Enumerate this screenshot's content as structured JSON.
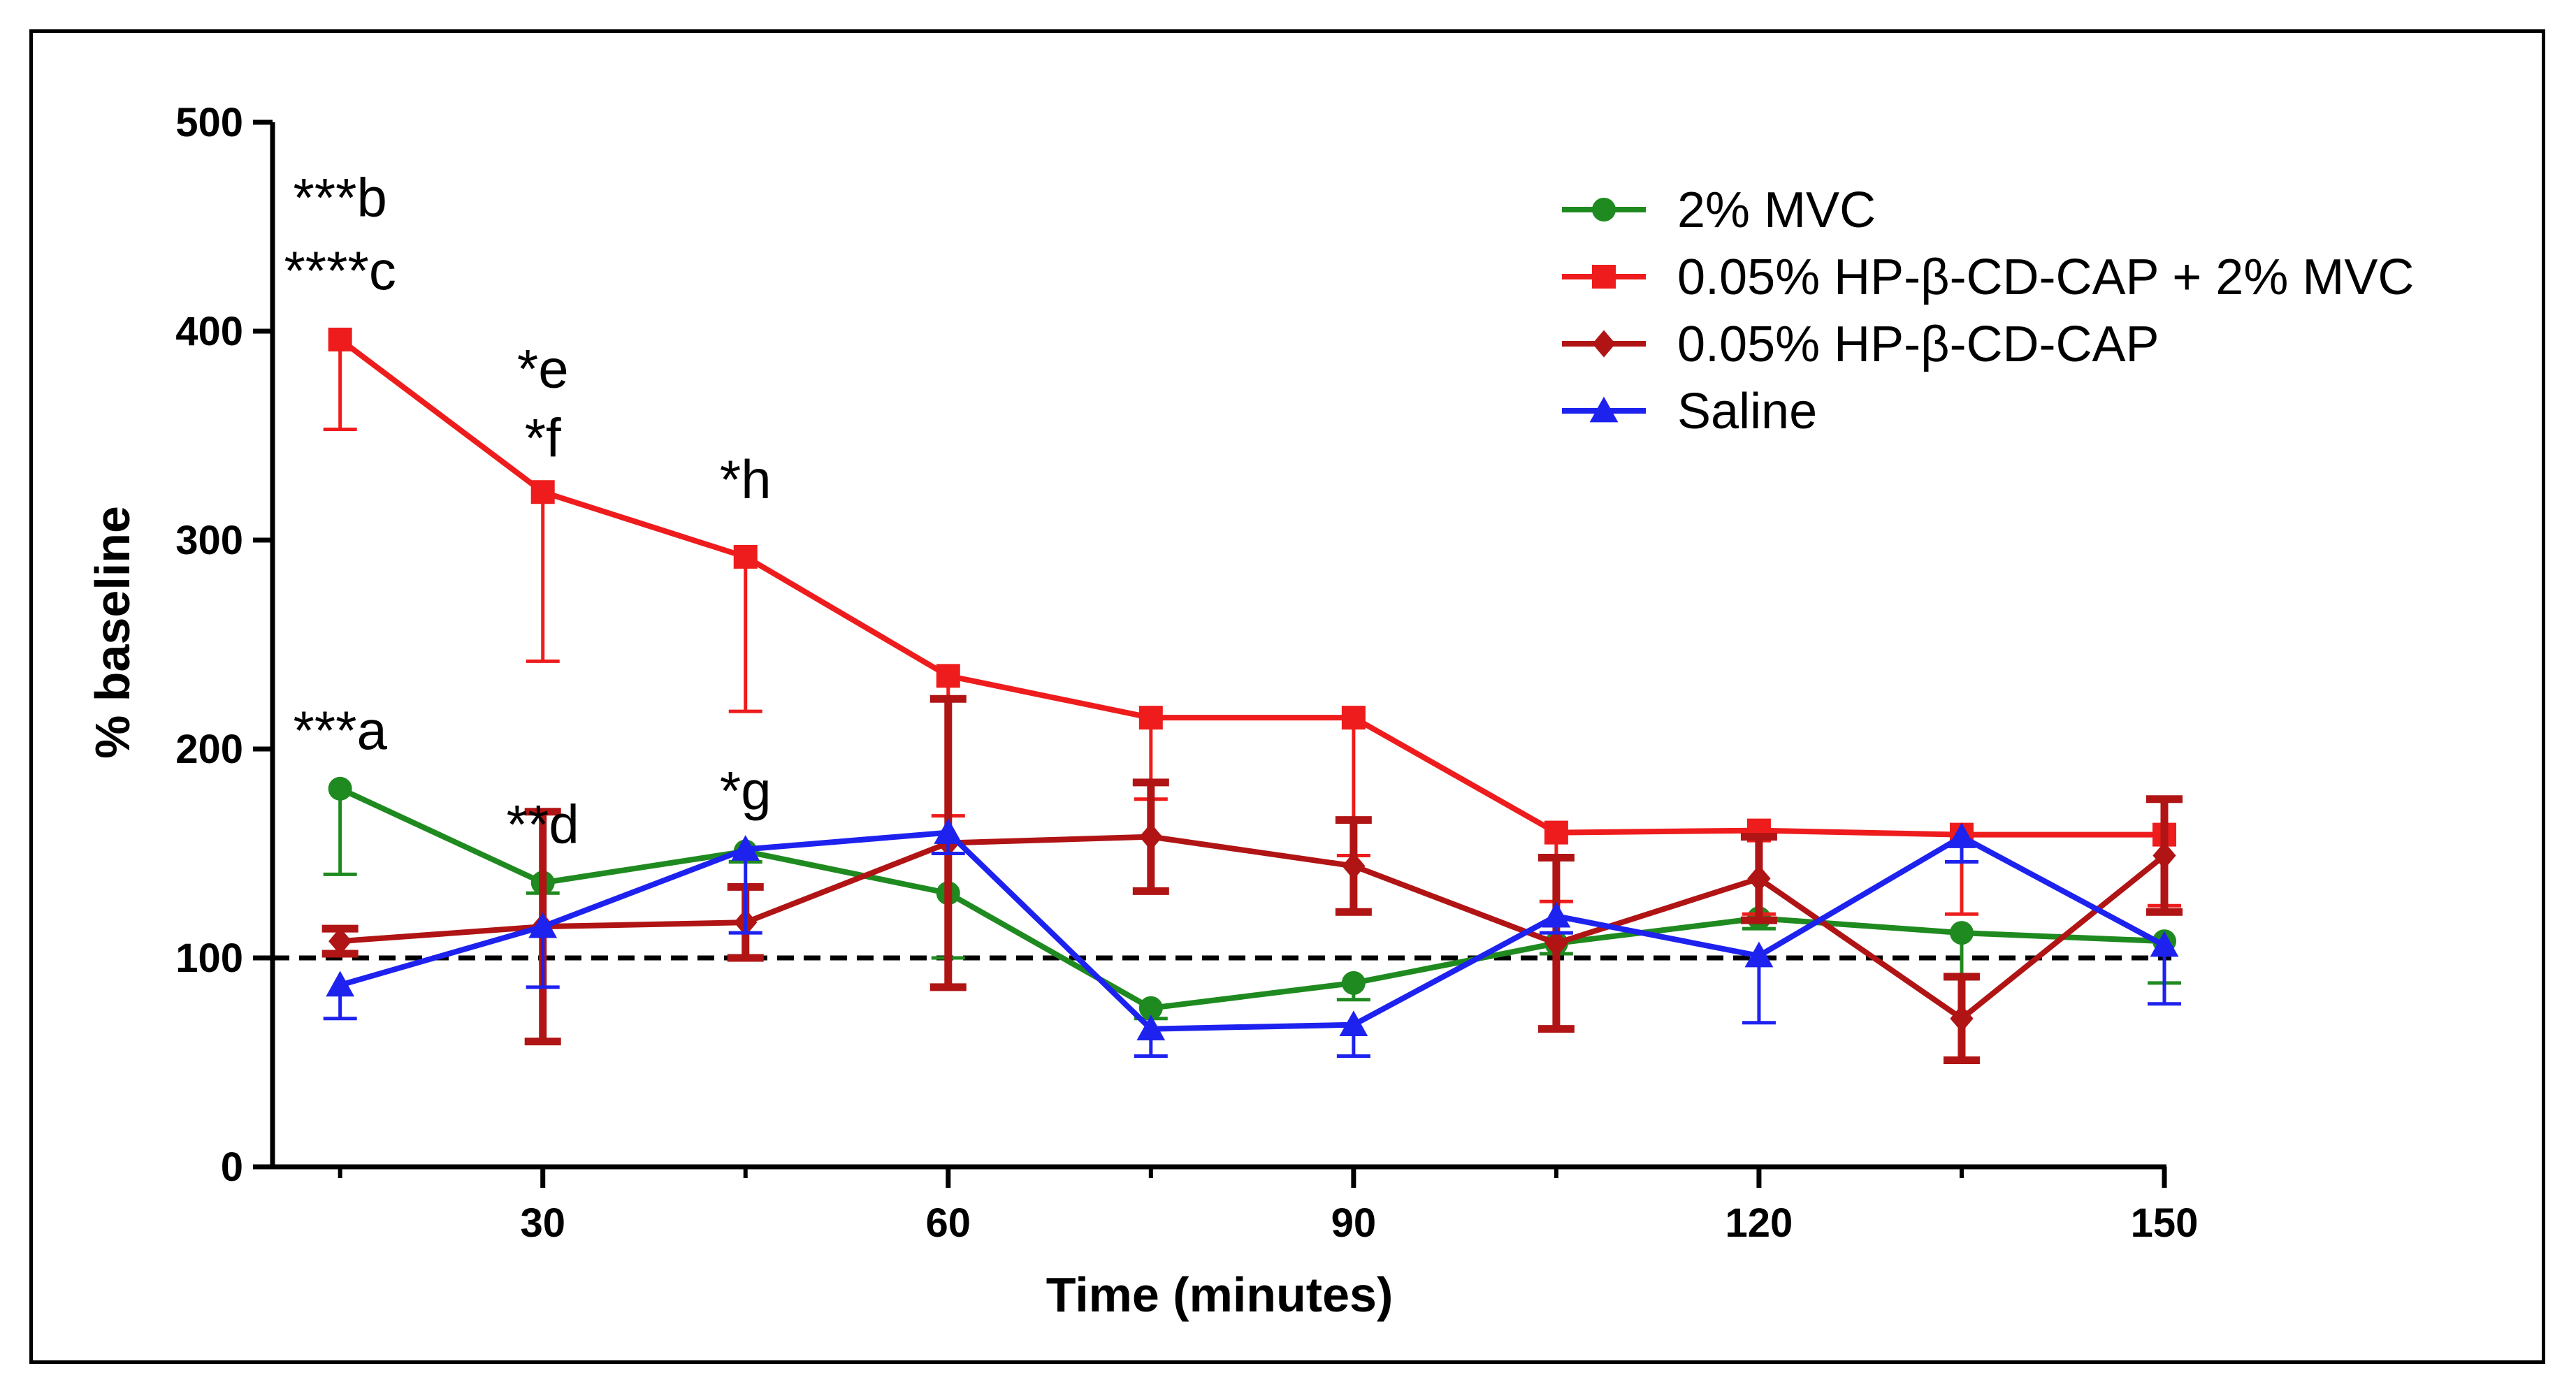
{
  "chart_data": {
    "type": "line",
    "xlabel": "Time (minutes)",
    "ylabel": "% baseline",
    "xlim": [
      10,
      153
    ],
    "ylim": [
      0,
      500
    ],
    "xticks": [
      30,
      60,
      90,
      120,
      150
    ],
    "xticks_minor": [
      15,
      45,
      75,
      105,
      135
    ],
    "yticks": [
      0,
      100,
      200,
      300,
      400,
      500
    ],
    "reference_line": {
      "y": 100,
      "style": "dashed",
      "color": "#000000"
    },
    "legend": {
      "placement": "top-right"
    },
    "series": [
      {
        "name": "2% MVC",
        "color": "#1f8a1f",
        "marker": "circle",
        "x": [
          15,
          30,
          45,
          60,
          75,
          90,
          105,
          120,
          135,
          150
        ],
        "y": [
          181,
          136,
          151,
          131,
          76,
          88,
          107,
          119,
          112,
          108
        ],
        "err": [
          41,
          5,
          5,
          31,
          5,
          8,
          5,
          5,
          22,
          20
        ],
        "err_dir": [
          -1,
          -1,
          -1,
          -1,
          -1,
          -1,
          -1,
          -1,
          -1,
          -1
        ]
      },
      {
        "name": "0.05% HP-β-CD-CAP + 2% MVC",
        "color": "#ee1c1c",
        "marker": "square",
        "x": [
          15,
          30,
          45,
          60,
          75,
          90,
          105,
          120,
          135,
          150
        ],
        "y": [
          396,
          323,
          292,
          235,
          215,
          215,
          160,
          161,
          159,
          159
        ],
        "err": [
          43,
          81,
          74,
          67,
          39,
          66,
          33,
          40,
          38,
          34
        ],
        "err_dir": [
          -1,
          -1,
          -1,
          -1,
          -1,
          -1,
          -1,
          -1,
          -1,
          -1
        ]
      },
      {
        "name": "0.05% HP-β-CD-CAP",
        "color": "#b01414",
        "marker": "diamond",
        "x": [
          15,
          30,
          45,
          60,
          75,
          90,
          105,
          120,
          135,
          150
        ],
        "y": [
          108,
          115,
          117,
          155,
          158,
          144,
          107,
          138,
          71,
          149
        ],
        "err": [
          6,
          55,
          17,
          69,
          26,
          22,
          41,
          20,
          20,
          27
        ],
        "err_dir": [
          0,
          0,
          0,
          0,
          0,
          0,
          0,
          0,
          0,
          0
        ]
      },
      {
        "name": "Saline",
        "color": "#1e22ee",
        "marker": "triangle",
        "x": [
          15,
          30,
          45,
          60,
          75,
          90,
          105,
          120,
          135,
          150
        ],
        "y": [
          87,
          115,
          152,
          160,
          66,
          68,
          120,
          101,
          158,
          106
        ],
        "err": [
          16,
          29,
          40,
          10,
          13,
          15,
          8,
          32,
          12,
          28
        ],
        "err_dir": [
          -1,
          -1,
          -1,
          -1,
          -1,
          -1,
          -1,
          -1,
          -1,
          -1
        ]
      }
    ],
    "annotations": [
      {
        "text": "***b",
        "x": 15,
        "y": 455
      },
      {
        "text": "****c",
        "x": 15,
        "y": 420
      },
      {
        "text": "*e",
        "x": 30,
        "y": 373
      },
      {
        "text": "*f",
        "x": 30,
        "y": 340
      },
      {
        "text": "*h",
        "x": 45,
        "y": 320
      },
      {
        "text": "***a",
        "x": 15,
        "y": 200
      },
      {
        "text": "**d",
        "x": 30,
        "y": 155
      },
      {
        "text": "*g",
        "x": 45,
        "y": 171
      }
    ]
  }
}
